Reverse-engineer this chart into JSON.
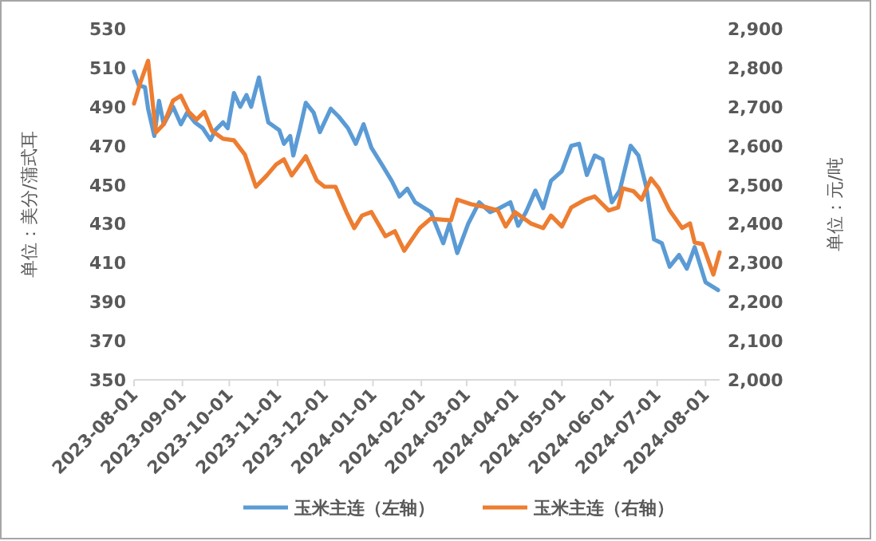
{
  "chart_data": {
    "type": "line",
    "ylabel": "单位：美分/蒲式耳",
    "y2label": "单位：元/吨",
    "legend": "bottom",
    "grid": false,
    "line_style": "solid",
    "marker": "none",
    "xlim": [
      "2023-08-01",
      "2024-08-10"
    ],
    "xticks": [
      "2023-08-01",
      "2023-09-01",
      "2023-10-01",
      "2023-11-01",
      "2023-12-01",
      "2024-01-01",
      "2024-02-01",
      "2024-03-01",
      "2024-04-01",
      "2024-05-01",
      "2024-06-01",
      "2024-07-01",
      "2024-08-01"
    ],
    "ylim": [
      350,
      530
    ],
    "yticks": [
      350,
      370,
      390,
      410,
      430,
      450,
      470,
      490,
      510,
      530
    ],
    "y2lim": [
      2000,
      2900
    ],
    "y2ticks": [
      {
        "value": 2000,
        "label": "2,000"
      },
      {
        "value": 2100,
        "label": "2,100"
      },
      {
        "value": 2200,
        "label": "2,200"
      },
      {
        "value": 2300,
        "label": "2,300"
      },
      {
        "value": 2400,
        "label": "2,400"
      },
      {
        "value": 2500,
        "label": "2,500"
      },
      {
        "value": 2600,
        "label": "2,600"
      },
      {
        "value": 2700,
        "label": "2,700"
      },
      {
        "value": 2800,
        "label": "2,800"
      },
      {
        "value": 2900,
        "label": "2,900"
      }
    ],
    "series": [
      {
        "name": "玉米主连（左轴）",
        "color": "#5b9bd5",
        "x": [
          "2023-08-01",
          "2023-08-04",
          "2023-08-08",
          "2023-08-10",
          "2023-08-14",
          "2023-08-17",
          "2023-08-20",
          "2023-08-26",
          "2023-08-31",
          "2023-09-04",
          "2023-09-09",
          "2023-09-14",
          "2023-09-19",
          "2023-09-22",
          "2023-09-27",
          "2023-09-30",
          "2023-10-04",
          "2023-10-08",
          "2023-10-12",
          "2023-10-15",
          "2023-10-20",
          "2023-10-23",
          "2023-10-26",
          "2023-11-02",
          "2023-11-05",
          "2023-11-09",
          "2023-11-11",
          "2023-11-15",
          "2023-11-19",
          "2023-11-24",
          "2023-11-28",
          "2023-12-05",
          "2023-12-10",
          "2023-12-16",
          "2023-12-21",
          "2023-12-26",
          "2023-12-31",
          "2024-01-07",
          "2024-01-13",
          "2024-01-18",
          "2024-01-23",
          "2024-01-28",
          "2024-02-07",
          "2024-02-15",
          "2024-02-19",
          "2024-02-24",
          "2024-03-02",
          "2024-03-09",
          "2024-03-16",
          "2024-03-22",
          "2024-03-29",
          "2024-04-03",
          "2024-04-08",
          "2024-04-14",
          "2024-04-19",
          "2024-04-24",
          "2024-05-01",
          "2024-05-07",
          "2024-05-12",
          "2024-05-17",
          "2024-05-22",
          "2024-05-27",
          "2024-06-02",
          "2024-06-07",
          "2024-06-14",
          "2024-06-19",
          "2024-06-24",
          "2024-06-29",
          "2024-07-04",
          "2024-07-09",
          "2024-07-15",
          "2024-07-20",
          "2024-07-25",
          "2024-08-01",
          "2024-08-09"
        ],
        "values": [
          508,
          501,
          500,
          489,
          475,
          493,
          481,
          490,
          481,
          487,
          482,
          479,
          473,
          478,
          482,
          479,
          497,
          490,
          496,
          490,
          505,
          493,
          482,
          478,
          471,
          475,
          465,
          478,
          492,
          487,
          477,
          489,
          485,
          479,
          471,
          481,
          469,
          460,
          452,
          444,
          448,
          441,
          436,
          420,
          430,
          415,
          430,
          441,
          436,
          438,
          441,
          429,
          436,
          447,
          438,
          452,
          457,
          470,
          471,
          455,
          465,
          463,
          441,
          447,
          470,
          465,
          449,
          422,
          420,
          408,
          414,
          407,
          418,
          400,
          396
        ]
      },
      {
        "name": "玉米主连（右轴）",
        "color": "#ed7d31",
        "axis": "y2",
        "x": [
          "2023-08-01",
          "2023-08-05",
          "2023-08-10",
          "2023-08-15",
          "2023-08-20",
          "2023-08-26",
          "2023-08-31",
          "2023-09-05",
          "2023-09-10",
          "2023-09-15",
          "2023-09-20",
          "2023-09-27",
          "2023-10-04",
          "2023-10-11",
          "2023-10-18",
          "2023-10-25",
          "2023-10-31",
          "2023-11-05",
          "2023-11-10",
          "2023-11-19",
          "2023-11-26",
          "2023-12-01",
          "2023-12-08",
          "2023-12-15",
          "2023-12-20",
          "2023-12-25",
          "2023-12-31",
          "2024-01-09",
          "2024-01-15",
          "2024-01-21",
          "2024-01-28",
          "2024-01-31",
          "2024-02-07",
          "2024-02-20",
          "2024-02-24",
          "2024-03-04",
          "2024-03-14",
          "2024-03-21",
          "2024-03-26",
          "2024-04-01",
          "2024-04-11",
          "2024-04-19",
          "2024-04-24",
          "2024-05-01",
          "2024-05-07",
          "2024-05-16",
          "2024-05-22",
          "2024-05-31",
          "2024-06-06",
          "2024-06-09",
          "2024-06-16",
          "2024-06-21",
          "2024-06-27",
          "2024-07-02",
          "2024-07-09",
          "2024-07-17",
          "2024-07-22",
          "2024-07-25",
          "2024-07-30",
          "2024-08-06",
          "2024-08-10"
        ],
        "values": [
          2708,
          2761,
          2818,
          2634,
          2655,
          2716,
          2728,
          2687,
          2667,
          2687,
          2638,
          2618,
          2614,
          2577,
          2495,
          2524,
          2552,
          2565,
          2524,
          2573,
          2511,
          2495,
          2495,
          2430,
          2389,
          2421,
          2430,
          2368,
          2381,
          2331,
          2372,
          2389,
          2413,
          2409,
          2462,
          2450,
          2442,
          2434,
          2393,
          2430,
          2401,
          2389,
          2421,
          2393,
          2442,
          2462,
          2470,
          2434,
          2442,
          2491,
          2483,
          2462,
          2516,
          2491,
          2434,
          2389,
          2401,
          2352,
          2348,
          2270,
          2327
        ]
      }
    ]
  }
}
